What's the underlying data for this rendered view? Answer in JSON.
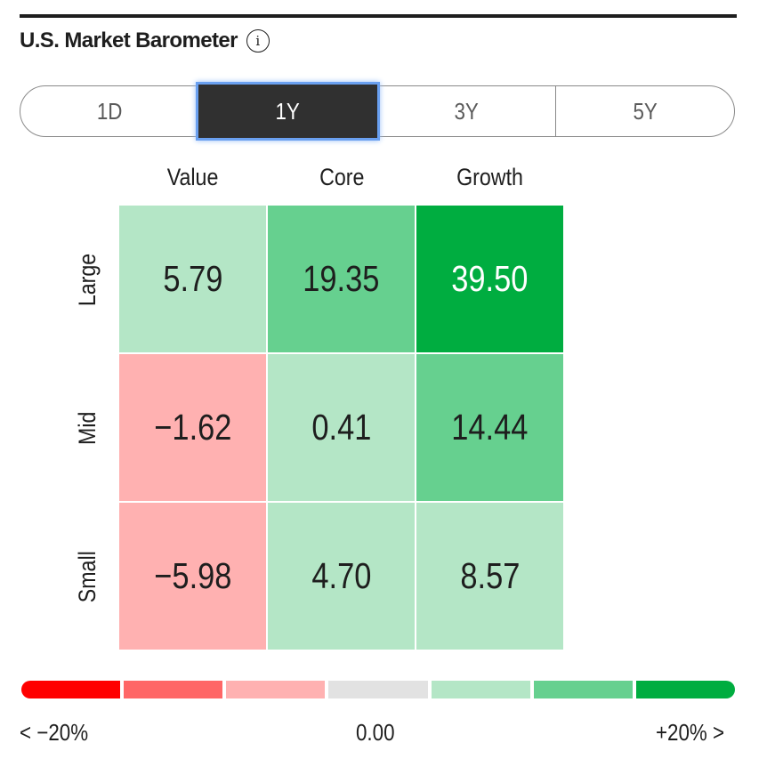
{
  "header": {
    "title": "U.S. Market Barometer",
    "info_icon": "info-icon"
  },
  "tabs": [
    {
      "label": "1D",
      "active": false
    },
    {
      "label": "1Y",
      "active": true
    },
    {
      "label": "3Y",
      "active": false
    },
    {
      "label": "5Y",
      "active": false
    }
  ],
  "chart_data": {
    "type": "heatmap",
    "columns": [
      "Value",
      "Core",
      "Growth"
    ],
    "rows": [
      "Large",
      "Mid",
      "Small"
    ],
    "values": [
      [
        "5.79",
        "19.35",
        "39.50"
      ],
      [
        "−1.62",
        "0.41",
        "14.44"
      ],
      [
        "−5.98",
        "4.70",
        "8.57"
      ]
    ],
    "colors": [
      [
        "#b4e6c6",
        "#66d08f",
        "#00ad40"
      ],
      [
        "#ffb1b1",
        "#b4e6c6",
        "#66d08f"
      ],
      [
        "#ffb1b1",
        "#b4e6c6",
        "#b4e6c6"
      ]
    ],
    "text_colors": [
      [
        "#1e1e1e",
        "#1e1e1e",
        "#ffffff"
      ],
      [
        "#1e1e1e",
        "#1e1e1e",
        "#1e1e1e"
      ],
      [
        "#1e1e1e",
        "#1e1e1e",
        "#1e1e1e"
      ]
    ]
  },
  "legend": {
    "colors": [
      "#ff0000",
      "#ff6666",
      "#ffb1b1",
      "#e2e2e2",
      "#b4e6c6",
      "#66d08f",
      "#00ad40"
    ],
    "min_label": "< −20%",
    "mid_label": "0.00",
    "max_label": "+20% >"
  }
}
